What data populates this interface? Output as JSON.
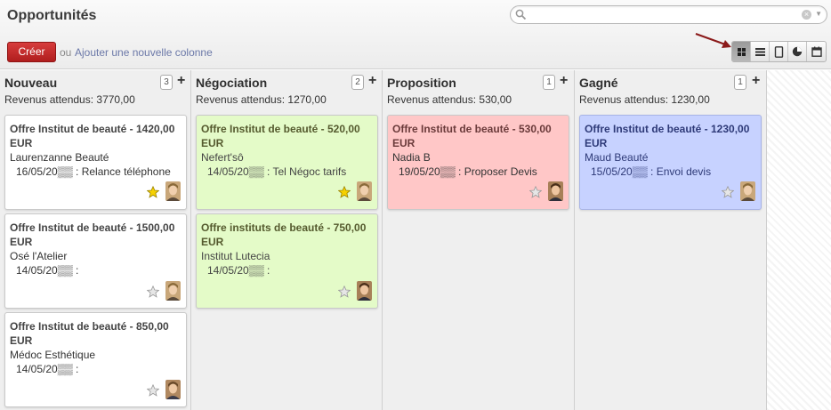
{
  "page": {
    "title": "Opportunités"
  },
  "search": {
    "placeholder": "",
    "value": ""
  },
  "toolbar": {
    "create_label": "Créer",
    "or_label": "ou",
    "add_column_label": "Ajouter une nouvelle colonne"
  },
  "views": [
    {
      "icon": "kanban-icon",
      "active": true
    },
    {
      "icon": "list-icon",
      "active": false
    },
    {
      "icon": "form-icon",
      "active": false
    },
    {
      "icon": "graph-icon",
      "active": false
    },
    {
      "icon": "calendar-icon",
      "active": false
    }
  ],
  "colors": {
    "create": "#c0282a",
    "link": "#6b78a8",
    "card_white": "#ffffff",
    "card_green": "#e4fbc8",
    "card_red": "#ffc7c7",
    "card_blue": "#c7d2ff",
    "arrow": "#8b1a1a"
  },
  "columns": [
    {
      "title": "Nouveau",
      "count": "3",
      "add": "+",
      "revenue": "Revenus attendus: 3770,00",
      "cards": [
        {
          "title": "Offre Institut de beauté - 1420,00 EUR",
          "client": "Laurenzanne Beauté",
          "activity": "16/05/20▒▒ : Relance téléphone",
          "starred": true
        },
        {
          "title": "Offre Institut de beauté - 1500,00 EUR",
          "client": "Osé l'Atelier",
          "activity": "14/05/20▒▒ :",
          "starred": false
        },
        {
          "title": "Offre Institut de beauté - 850,00 EUR",
          "client": "Médoc Esthétique",
          "activity": "14/05/20▒▒ :",
          "starred": false
        }
      ]
    },
    {
      "title": "Négociation",
      "count": "2",
      "add": "+",
      "revenue": "Revenus attendus: 1270,00",
      "cards": [
        {
          "title": "Offre Institut de beauté - 520,00 EUR",
          "client": "Nefert'sô",
          "activity": "14/05/20▒▒ : Tel Négoc tarifs",
          "starred": true
        },
        {
          "title": "Offre instituts de beauté - 750,00 EUR",
          "client": "Institut Lutecia",
          "activity": "14/05/20▒▒ :",
          "starred": false
        }
      ]
    },
    {
      "title": "Proposition",
      "count": "1",
      "add": "+",
      "revenue": "Revenus attendus: 530,00",
      "cards": [
        {
          "title": "Offre Institut de beauté - 530,00 EUR",
          "client": "Nadia B",
          "activity": "19/05/20▒▒ : Proposer Devis",
          "starred": false
        }
      ]
    },
    {
      "title": "Gagné",
      "count": "1",
      "add": "+",
      "revenue": "Revenus attendus: 1230,00",
      "cards": [
        {
          "title": "Offre Institut de beauté - 1230,00 EUR",
          "client": "Maud Beauté",
          "activity": "15/05/20▒▒ : Envoi devis",
          "starred": false
        }
      ]
    }
  ]
}
